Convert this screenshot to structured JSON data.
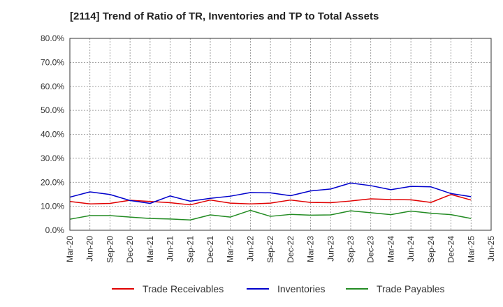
{
  "chart_data": {
    "type": "line",
    "title": "[2114]  Trend of Ratio of TR, Inventories and TP to Total Assets",
    "x": [
      "Mar-20",
      "Jun-20",
      "Sep-20",
      "Dec-20",
      "Mar-21",
      "Jun-21",
      "Sep-21",
      "Dec-21",
      "Mar-22",
      "Jun-22",
      "Sep-22",
      "Dec-22",
      "Mar-23",
      "Jun-23",
      "Sep-23",
      "Dec-23",
      "Mar-24",
      "Jun-24",
      "Sep-24",
      "Dec-24",
      "Mar-25",
      "Jun-25"
    ],
    "ylim": [
      0,
      80
    ],
    "yticks": [
      0,
      10,
      20,
      30,
      40,
      50,
      60,
      70,
      80
    ],
    "ytick_labels": [
      "0.0%",
      "10.0%",
      "20.0%",
      "30.0%",
      "40.0%",
      "50.0%",
      "60.0%",
      "70.0%",
      "80.0%"
    ],
    "grid": true,
    "legend_position": "bottom",
    "series": [
      {
        "name": "Trade Receivables",
        "color": "#e00000",
        "values": [
          12.0,
          11.0,
          11.2,
          12.5,
          12.0,
          11.5,
          10.6,
          12.6,
          11.3,
          11.0,
          11.3,
          12.6,
          11.6,
          11.5,
          12.2,
          13.1,
          12.8,
          12.7,
          11.6,
          14.9,
          12.6,
          null
        ]
      },
      {
        "name": "Inventories",
        "color": "#0000cc",
        "values": [
          13.8,
          16.0,
          14.9,
          12.4,
          11.2,
          14.3,
          12.1,
          13.3,
          14.2,
          15.7,
          15.6,
          14.4,
          16.4,
          17.2,
          19.7,
          18.6,
          16.9,
          18.3,
          18.1,
          15.3,
          14.0,
          null
        ]
      },
      {
        "name": "Trade Payables",
        "color": "#228b22",
        "values": [
          4.6,
          6.1,
          6.1,
          5.5,
          4.9,
          4.7,
          4.3,
          6.4,
          5.5,
          8.3,
          5.8,
          6.6,
          6.3,
          6.4,
          8.1,
          7.3,
          6.5,
          8.0,
          7.1,
          6.5,
          4.9,
          null
        ]
      }
    ]
  }
}
